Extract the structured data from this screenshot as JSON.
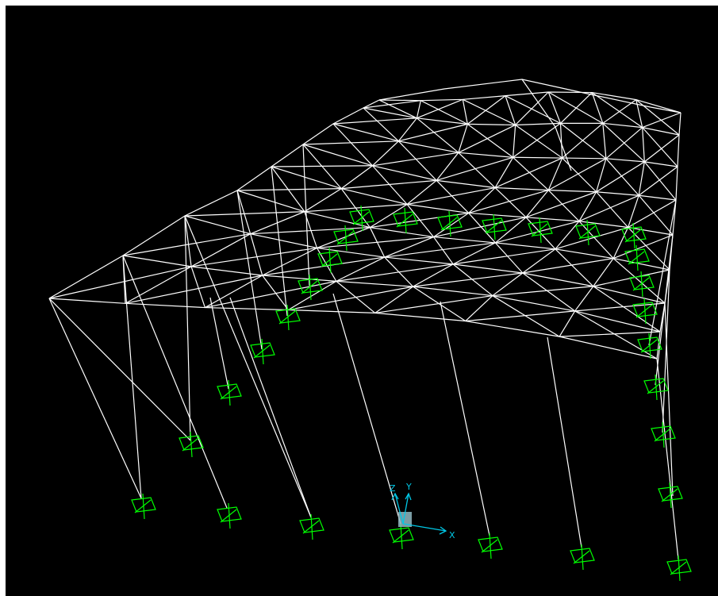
{
  "viewport": {
    "background": "#000000",
    "frame_color": "#ffffff",
    "frame_colors": {
      "members": "#ffffff",
      "supports": "#00ff00",
      "axes": "#00c8e6",
      "origin_box": "#8fb8c2"
    }
  },
  "axes": {
    "x_label": "X",
    "y_label": "Y",
    "z_label": "Z"
  },
  "icons": {
    "support": "fixed-support-icon",
    "triad": "coordinate-axes-icon"
  }
}
